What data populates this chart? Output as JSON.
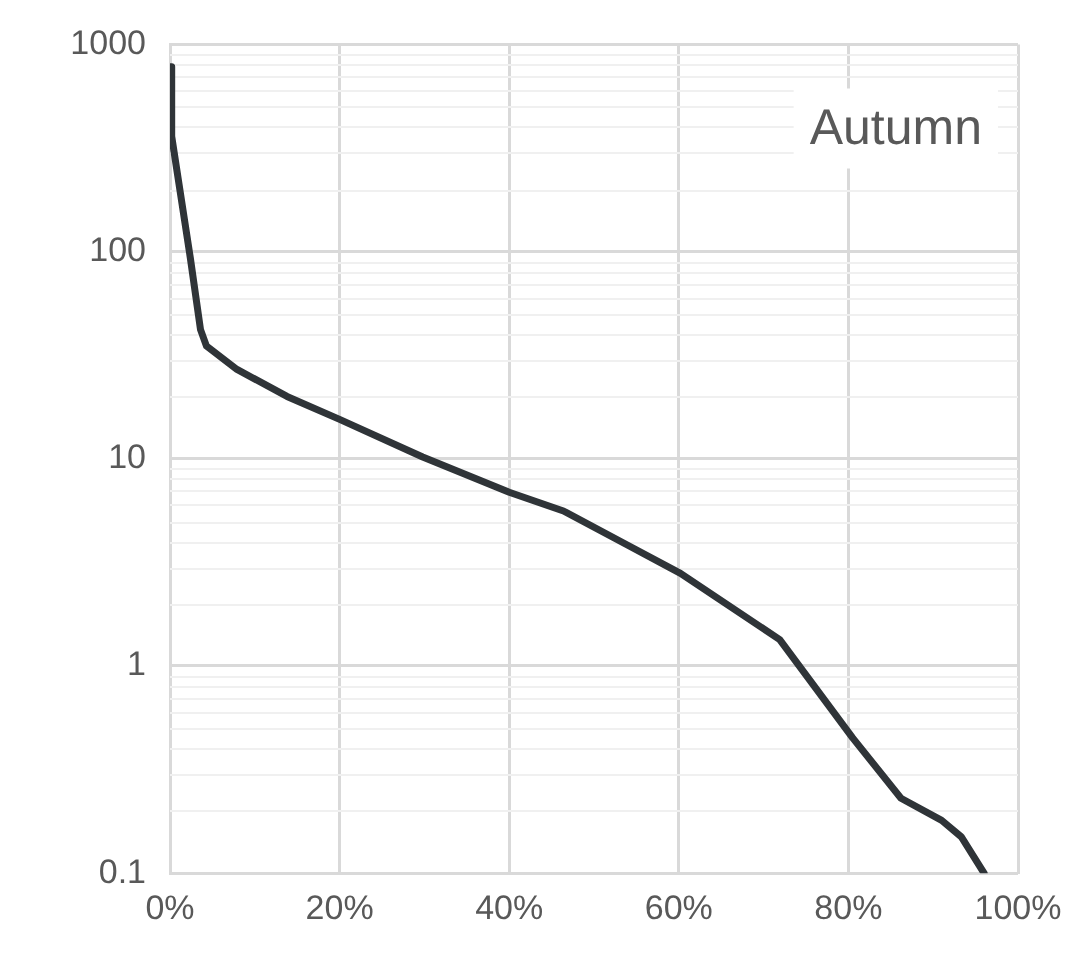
{
  "chart_data": {
    "type": "line",
    "annotations": [
      "Autumn"
    ],
    "x": [
      0,
      0.2,
      2.4,
      3.6,
      4.3,
      7.9,
      13.8,
      20,
      29.8,
      40,
      46.4,
      53.6,
      60.2,
      71.9,
      80.5,
      86.2,
      91,
      93.3,
      96
    ],
    "series": [
      {
        "color": "#2f3438",
        "values": [
          780,
          360,
          93,
          42,
          35,
          27,
          20,
          15.5,
          10.2,
          6.9,
          5.6,
          3.9,
          2.8,
          1.34,
          0.45,
          0.23,
          0.18,
          0.15,
          0.1
        ]
      }
    ],
    "xlim": [
      0,
      100
    ],
    "xticks": [
      {
        "value": 0,
        "label": "0%"
      },
      {
        "value": 20,
        "label": "20%"
      },
      {
        "value": 40,
        "label": "40%"
      },
      {
        "value": 60,
        "label": "60%"
      },
      {
        "value": 80,
        "label": "80%"
      },
      {
        "value": 100,
        "label": "100%"
      }
    ],
    "ylim": [
      0.1,
      1000
    ],
    "yticks": [
      0.1,
      1,
      10,
      100,
      1000
    ],
    "log": true,
    "grid": true,
    "legend": false,
    "marker": "none",
    "line_style": "solid"
  }
}
